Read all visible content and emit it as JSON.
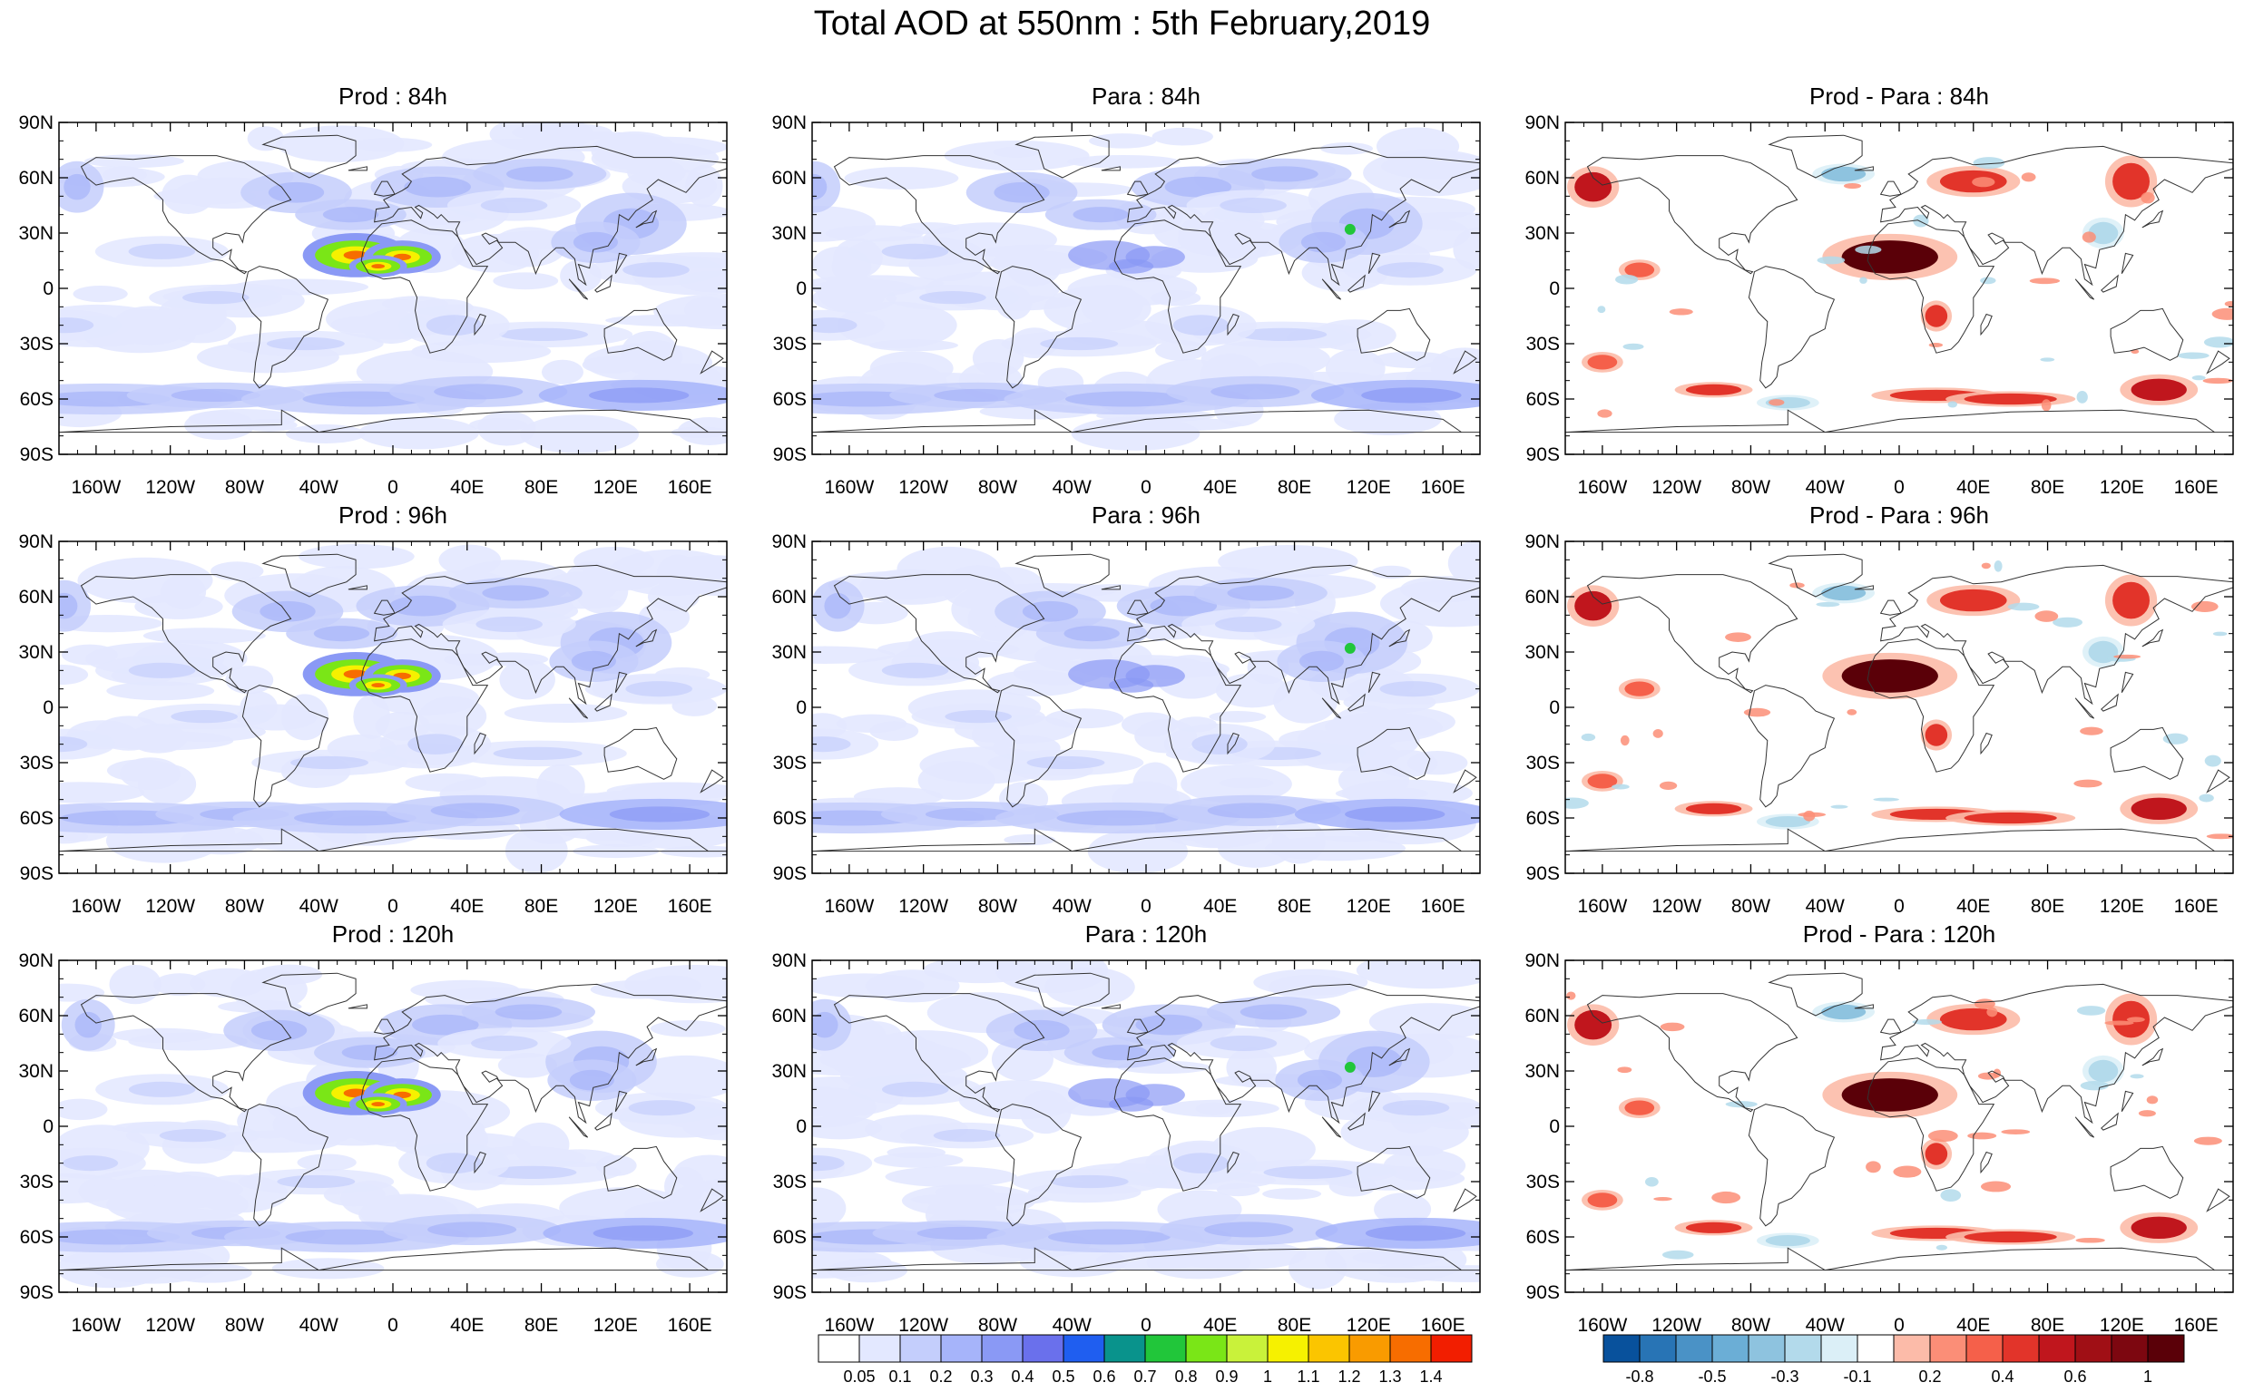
{
  "title": "Total AOD at 550nm : 5th February,2019",
  "lon_ticks": [
    "160W",
    "120W",
    "80W",
    "40W",
    "0",
    "40E",
    "80E",
    "120E",
    "160E"
  ],
  "lat_ticks": [
    "90N",
    "60N",
    "30N",
    "0",
    "30S",
    "60S",
    "90S"
  ],
  "panels": [
    {
      "title": "Prod : 84h",
      "kind": "aod",
      "dust": 1.0
    },
    {
      "title": "Para : 84h",
      "kind": "aod",
      "dust": 0.25
    },
    {
      "title": "Prod - Para : 84h",
      "kind": "diff"
    },
    {
      "title": "Prod : 96h",
      "kind": "aod",
      "dust": 1.0
    },
    {
      "title": "Para : 96h",
      "kind": "aod",
      "dust": 0.25
    },
    {
      "title": "Prod - Para : 96h",
      "kind": "diff"
    },
    {
      "title": "Prod : 120h",
      "kind": "aod",
      "dust": 1.0
    },
    {
      "title": "Para : 120h",
      "kind": "aod",
      "dust": 0.3
    },
    {
      "title": "Prod - Para : 120h",
      "kind": "diff"
    }
  ],
  "aod_colorbar": {
    "labels": [
      "0.05",
      "0.1",
      "0.2",
      "0.3",
      "0.4",
      "0.5",
      "0.6",
      "0.7",
      "0.8",
      "0.9",
      "1",
      "1.1",
      "1.2",
      "1.3",
      "1.4"
    ],
    "colors": [
      "#ffffff",
      "#e3e8ff",
      "#c4cefc",
      "#a6b4fa",
      "#8a99f5",
      "#6a70ec",
      "#1f5ef0",
      "#09938c",
      "#21c63a",
      "#7ae617",
      "#c9f23a",
      "#f6f100",
      "#fbc500",
      "#f99b00",
      "#f76d00",
      "#f21e00"
    ]
  },
  "diff_colorbar": {
    "labels": [
      "-0.8",
      "-0.5",
      "-0.3",
      "-0.1",
      "0.2",
      "0.4",
      "0.6",
      "1"
    ],
    "colors": [
      "#08519c",
      "#2874b5",
      "#4a92c6",
      "#6baed6",
      "#8ec3df",
      "#b3daeb",
      "#dbeff7",
      "#ffffff",
      "#fcbba9",
      "#fb8e77",
      "#f5604a",
      "#e2342a",
      "#c0161d",
      "#a00f15",
      "#7d0710",
      "#5a0008"
    ]
  }
}
